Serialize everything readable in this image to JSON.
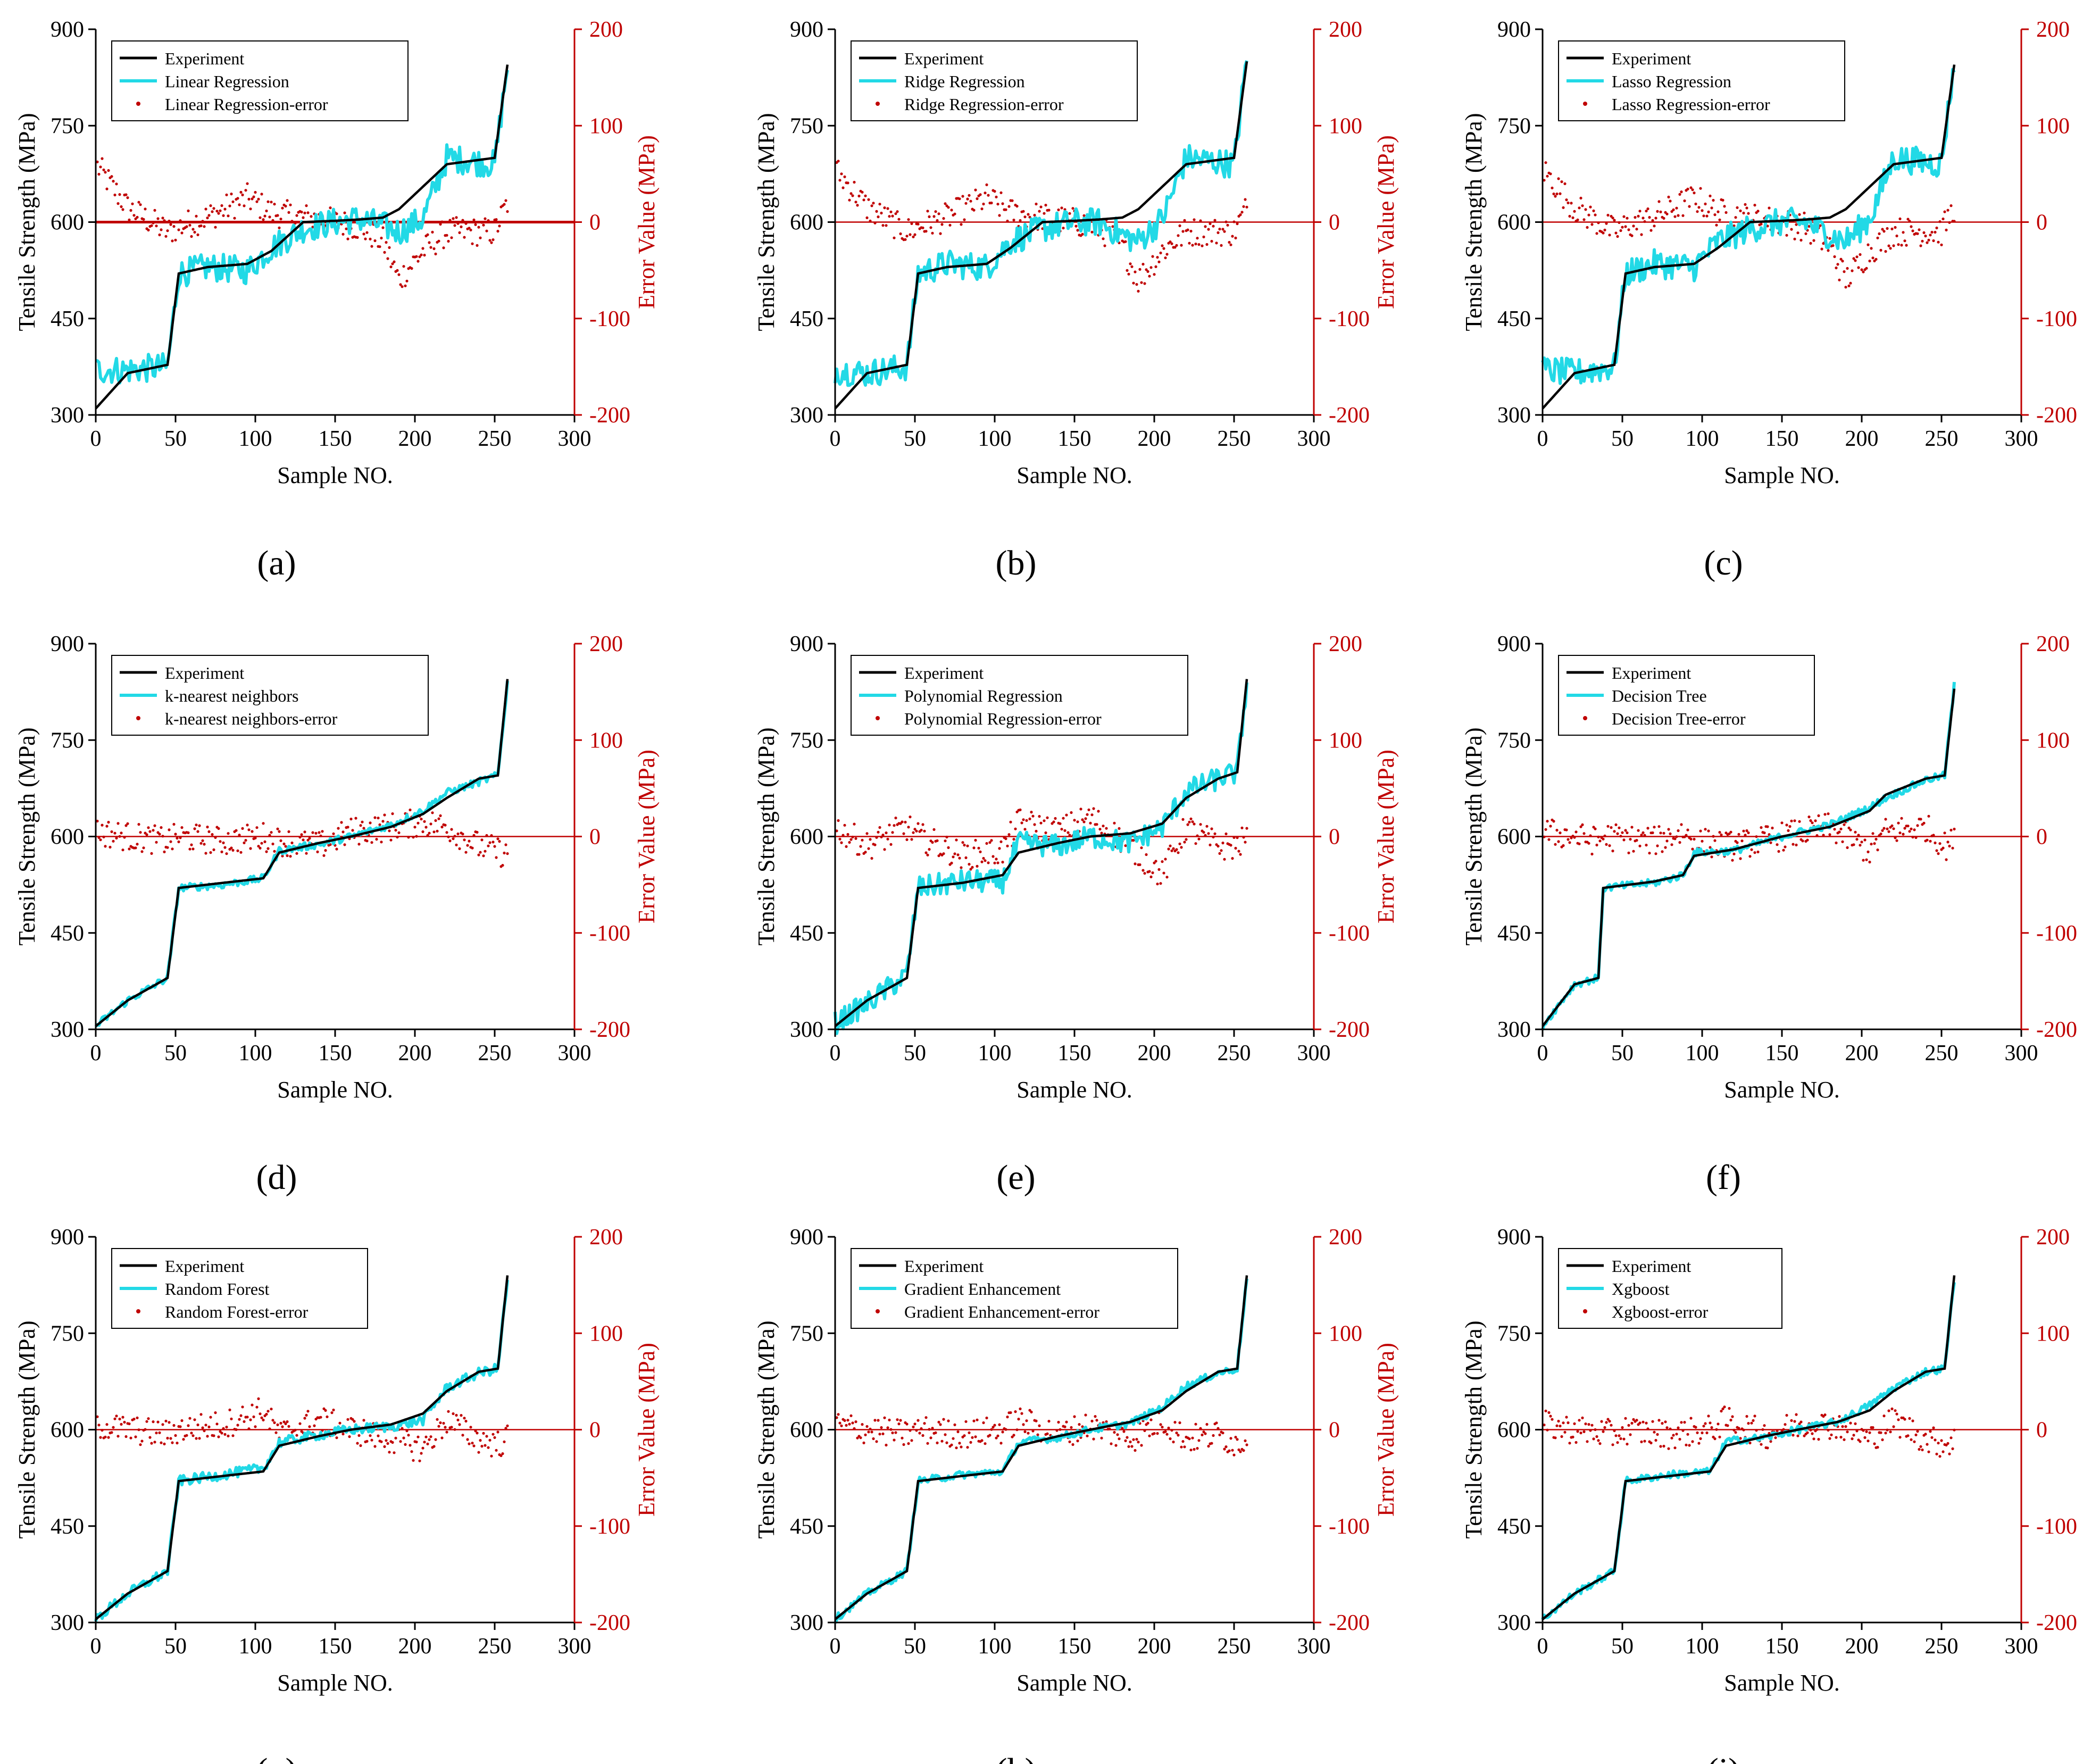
{
  "colors": {
    "experiment": "#000000",
    "model": "#22d9e6",
    "error": "#c00000",
    "axis_left": "#000000",
    "axis_right": "#c00000"
  },
  "common": {
    "xlabel": "Sample NO.",
    "ylabel": "Tensile Strength (MPa)",
    "y2label": "Error Value (MPa)",
    "xlim": [
      0,
      300
    ],
    "ylim": [
      300,
      900
    ],
    "y2lim": [
      -200,
      200
    ],
    "xticks": [
      0,
      50,
      100,
      150,
      200,
      250,
      300
    ],
    "yticks": [
      300,
      450,
      600,
      750,
      900
    ],
    "y2ticks": [
      -200,
      -100,
      0,
      100,
      200
    ]
  },
  "chart_data": [
    {
      "type": "line",
      "panel": "(a)",
      "title": "",
      "xlabel": "Sample NO.",
      "ylabel": "Tensile Strength (MPa)",
      "y2label": "Error Value (MPa)",
      "xlim": [
        0,
        300
      ],
      "ylim": [
        300,
        900
      ],
      "y2lim": [
        -200,
        200
      ],
      "legend": [
        "Experiment",
        "Linear Regression",
        "Linear Regression-error"
      ],
      "series": [
        {
          "name": "Experiment",
          "values": [
            310,
            365,
            378,
            520,
            530,
            535,
            555,
            600,
            602,
            604,
            607,
            620,
            655,
            690,
            700,
            845
          ]
        },
        {
          "name": "Linear Regression",
          "values": [
            370,
            370,
            375,
            520,
            530,
            525,
            560,
            590,
            600,
            605,
            595,
            585,
            605,
            700,
            690,
            845
          ]
        },
        {
          "name": "Linear Regression-error",
          "values": [
            60,
            15,
            -10,
            -5,
            5,
            25,
            10,
            5,
            0,
            -5,
            -20,
            -60,
            -30,
            -10,
            -10,
            20
          ]
        }
      ],
      "x_points": [
        0,
        20,
        45,
        52,
        70,
        95,
        110,
        130,
        150,
        165,
        180,
        190,
        205,
        220,
        250,
        258
      ],
      "model_noise": 22
    },
    {
      "type": "line",
      "panel": "(b)",
      "title": "",
      "xlabel": "Sample NO.",
      "ylabel": "Tensile Strength (MPa)",
      "y2label": "Error Value (MPa)",
      "xlim": [
        0,
        300
      ],
      "ylim": [
        300,
        900
      ],
      "y2lim": [
        -200,
        200
      ],
      "legend": [
        "Experiment",
        "Ridge Regression",
        "Ridge Regression-error"
      ],
      "series": [
        {
          "name": "Experiment",
          "values": [
            310,
            365,
            378,
            520,
            530,
            535,
            560,
            600,
            602,
            604,
            607,
            620,
            655,
            690,
            700,
            850
          ]
        },
        {
          "name": "Ridge Regression",
          "values": [
            370,
            365,
            375,
            520,
            535,
            530,
            570,
            590,
            600,
            600,
            580,
            570,
            605,
            700,
            690,
            855
          ]
        },
        {
          "name": "Ridge Regression-error",
          "values": [
            55,
            15,
            -10,
            -5,
            5,
            25,
            10,
            5,
            0,
            -5,
            -25,
            -60,
            -30,
            -10,
            -10,
            15
          ]
        }
      ],
      "x_points": [
        0,
        20,
        45,
        52,
        70,
        95,
        110,
        130,
        150,
        165,
        180,
        190,
        205,
        220,
        250,
        258
      ],
      "model_noise": 22
    },
    {
      "type": "line",
      "panel": "(c)",
      "title": "",
      "xlabel": "Sample NO.",
      "ylabel": "Tensile Strength (MPa)",
      "y2label": "Error Value (MPa)",
      "xlim": [
        0,
        300
      ],
      "ylim": [
        300,
        900
      ],
      "y2lim": [
        -200,
        200
      ],
      "legend": [
        "Experiment",
        "Lasso Regression",
        "Lasso Regression-error"
      ],
      "series": [
        {
          "name": "Experiment",
          "values": [
            310,
            365,
            378,
            520,
            530,
            535,
            560,
            600,
            602,
            604,
            607,
            620,
            655,
            690,
            700,
            845
          ]
        },
        {
          "name": "Lasso Regression",
          "values": [
            370,
            365,
            375,
            520,
            535,
            530,
            570,
            590,
            600,
            600,
            580,
            570,
            605,
            700,
            690,
            850
          ]
        },
        {
          "name": "Lasso Regression-error",
          "values": [
            55,
            15,
            -10,
            -5,
            5,
            25,
            10,
            5,
            0,
            -5,
            -25,
            -60,
            -30,
            -10,
            -10,
            15
          ]
        }
      ],
      "x_points": [
        0,
        20,
        45,
        52,
        70,
        95,
        110,
        130,
        150,
        165,
        180,
        190,
        205,
        220,
        250,
        258
      ],
      "model_noise": 22
    },
    {
      "type": "line",
      "panel": "(d)",
      "title": "",
      "xlabel": "Sample NO.",
      "ylabel": "Tensile Strength (MPa)",
      "y2label": "Error Value (MPa)",
      "xlim": [
        0,
        300
      ],
      "ylim": [
        300,
        900
      ],
      "y2lim": [
        -200,
        200
      ],
      "legend": [
        "Experiment",
        "k-nearest neighbors",
        "k-nearest neighbors-error"
      ],
      "series": [
        {
          "name": "Experiment",
          "values": [
            305,
            345,
            380,
            520,
            528,
            535,
            575,
            590,
            600,
            615,
            635,
            660,
            690,
            695,
            845
          ]
        },
        {
          "name": "k-nearest neighbors",
          "values": [
            305,
            345,
            380,
            520,
            525,
            535,
            578,
            588,
            600,
            618,
            640,
            668,
            685,
            695,
            840
          ]
        },
        {
          "name": "k-nearest neighbors-error",
          "values": [
            5,
            0,
            -5,
            0,
            -5,
            0,
            -5,
            -10,
            5,
            10,
            15,
            10,
            -10,
            -15,
            -20
          ]
        }
      ],
      "x_points": [
        0,
        20,
        45,
        52,
        80,
        105,
        115,
        140,
        160,
        185,
        205,
        220,
        240,
        252,
        258
      ],
      "model_noise": 6
    },
    {
      "type": "line",
      "panel": "(e)",
      "title": "",
      "xlabel": "Sample NO.",
      "ylabel": "Tensile Strength (MPa)",
      "y2label": "Error Value (MPa)",
      "xlim": [
        0,
        300
      ],
      "ylim": [
        300,
        900
      ],
      "y2lim": [
        -200,
        200
      ],
      "legend": [
        "Experiment",
        "Polynomial Regression",
        "Polynomial Regression-error"
      ],
      "series": [
        {
          "name": "Experiment",
          "values": [
            305,
            345,
            380,
            520,
            528,
            540,
            575,
            590,
            600,
            605,
            620,
            660,
            690,
            700,
            845
          ]
        },
        {
          "name": "Polynomial Regression",
          "values": [
            310,
            340,
            385,
            520,
            530,
            530,
            590,
            585,
            600,
            590,
            615,
            670,
            690,
            700,
            840
          ]
        },
        {
          "name": "Polynomial Regression-error",
          "values": [
            10,
            -10,
            10,
            0,
            -20,
            -15,
            15,
            5,
            20,
            -10,
            -40,
            10,
            -10,
            -10,
            0
          ]
        }
      ],
      "x_points": [
        0,
        20,
        45,
        52,
        80,
        105,
        115,
        140,
        160,
        185,
        205,
        220,
        240,
        252,
        258
      ],
      "model_noise": 18
    },
    {
      "type": "line",
      "panel": "(f)",
      "title": "",
      "xlabel": "Sample NO.",
      "ylabel": "Tensile Strength (MPa)",
      "y2label": "Error Value (MPa)",
      "xlim": [
        0,
        300
      ],
      "ylim": [
        300,
        900
      ],
      "y2lim": [
        -200,
        200
      ],
      "legend": [
        "Experiment",
        "Decision Tree",
        "Decision Tree-error"
      ],
      "series": [
        {
          "name": "Experiment",
          "values": [
            305,
            370,
            380,
            520,
            530,
            540,
            570,
            580,
            600,
            615,
            640,
            665,
            690,
            695,
            830
          ]
        },
        {
          "name": "Decision Tree",
          "values": [
            305,
            370,
            380,
            520,
            528,
            540,
            575,
            578,
            600,
            618,
            645,
            660,
            688,
            695,
            835
          ]
        },
        {
          "name": "Decision Tree-error",
          "values": [
            5,
            0,
            -5,
            0,
            -5,
            5,
            -5,
            -10,
            0,
            10,
            -15,
            5,
            10,
            -10,
            -5
          ]
        }
      ],
      "x_points": [
        0,
        20,
        35,
        38,
        70,
        88,
        95,
        120,
        150,
        180,
        205,
        215,
        240,
        252,
        258
      ],
      "model_noise": 6
    },
    {
      "type": "line",
      "panel": "(g)",
      "title": "",
      "xlabel": "Sample NO.",
      "ylabel": "Tensile Strength (MPa)",
      "y2label": "Error Value (MPa)",
      "xlim": [
        0,
        300
      ],
      "ylim": [
        300,
        900
      ],
      "y2lim": [
        -200,
        200
      ],
      "legend": [
        "Experiment",
        "Random Forest",
        "Random Forest-error"
      ],
      "series": [
        {
          "name": "Experiment",
          "values": [
            305,
            345,
            380,
            520,
            528,
            535,
            575,
            590,
            600,
            608,
            625,
            660,
            690,
            695,
            840
          ]
        },
        {
          "name": "Random Forest",
          "values": [
            305,
            345,
            380,
            520,
            530,
            540,
            580,
            592,
            600,
            605,
            615,
            665,
            688,
            695,
            835
          ]
        },
        {
          "name": "Random Forest-error",
          "values": [
            5,
            0,
            -5,
            0,
            5,
            20,
            -5,
            10,
            0,
            -10,
            -20,
            10,
            -10,
            -15,
            -10
          ]
        }
      ],
      "x_points": [
        0,
        20,
        45,
        52,
        80,
        105,
        115,
        140,
        160,
        185,
        205,
        220,
        240,
        252,
        258
      ],
      "model_noise": 8
    },
    {
      "type": "line",
      "panel": "(h)",
      "title": "",
      "xlabel": "Sample NO.",
      "ylabel": "Tensile Strength (MPa)",
      "y2label": "Error Value (MPa)",
      "xlim": [
        0,
        300
      ],
      "ylim": [
        300,
        900
      ],
      "y2lim": [
        -200,
        200
      ],
      "legend": [
        "Experiment",
        "Gradient Enhancement",
        "Gradient Enhancement-error"
      ],
      "series": [
        {
          "name": "Experiment",
          "values": [
            305,
            345,
            380,
            520,
            528,
            535,
            575,
            590,
            600,
            612,
            630,
            660,
            690,
            695,
            840
          ]
        },
        {
          "name": "Gradient Enhancement",
          "values": [
            305,
            345,
            380,
            520,
            530,
            535,
            580,
            588,
            600,
            610,
            635,
            668,
            688,
            695,
            835
          ]
        },
        {
          "name": "Gradient Enhancement-error",
          "values": [
            5,
            0,
            -5,
            0,
            -5,
            0,
            10,
            -5,
            5,
            -10,
            10,
            -10,
            -5,
            -15,
            -10
          ]
        }
      ],
      "x_points": [
        0,
        20,
        45,
        52,
        80,
        105,
        115,
        140,
        160,
        185,
        205,
        220,
        240,
        252,
        258
      ],
      "model_noise": 6
    },
    {
      "type": "line",
      "panel": "(i)",
      "title": "",
      "xlabel": "Sample NO.",
      "ylabel": "Tensile Strength (MPa)",
      "y2label": "Error Value (MPa)",
      "xlim": [
        0,
        300
      ],
      "ylim": [
        300,
        900
      ],
      "y2lim": [
        -200,
        200
      ],
      "legend": [
        "Experiment",
        "Xgboost",
        "Xgboost-error"
      ],
      "series": [
        {
          "name": "Experiment",
          "values": [
            305,
            345,
            380,
            520,
            528,
            535,
            575,
            590,
            600,
            612,
            630,
            660,
            690,
            695,
            840
          ]
        },
        {
          "name": "Xgboost",
          "values": [
            305,
            345,
            380,
            520,
            530,
            535,
            582,
            588,
            600,
            612,
            638,
            665,
            690,
            695,
            835
          ]
        },
        {
          "name": "Xgboost-error",
          "values": [
            5,
            0,
            -5,
            0,
            -5,
            0,
            10,
            -5,
            5,
            5,
            -10,
            10,
            -10,
            -15,
            -10
          ]
        }
      ],
      "x_points": [
        0,
        20,
        45,
        52,
        80,
        105,
        115,
        140,
        160,
        185,
        205,
        220,
        240,
        252,
        258
      ],
      "model_noise": 6
    }
  ]
}
